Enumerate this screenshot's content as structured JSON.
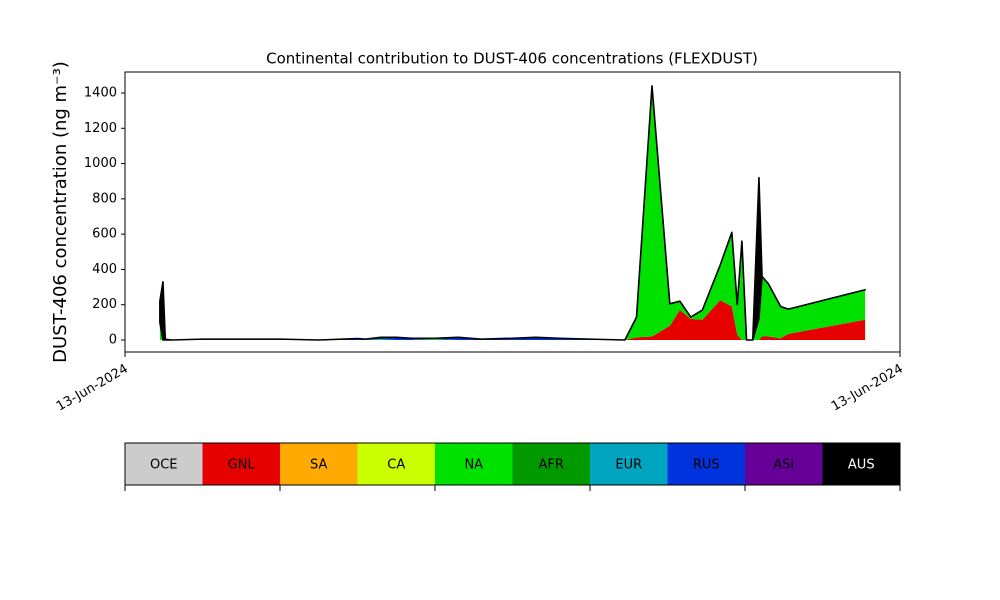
{
  "chart_data": {
    "type": "stacked_area",
    "title": "Continental contribution to DUST-406 concentrations (FLEXDUST)",
    "y_label": "DUST-406 concentration (ng m⁻³)",
    "x": [
      4.5,
      4.9,
      5.2,
      6,
      10,
      20,
      25,
      30,
      31,
      33,
      35,
      37,
      40,
      43,
      46,
      50,
      53,
      56,
      60,
      64.5,
      66,
      68,
      70.3,
      71.6,
      73,
      74.5,
      76.8,
      78.3,
      79,
      79.6,
      80.2,
      81,
      81.8,
      82.2,
      83,
      84.6,
      85.6,
      95.5
    ],
    "xlim": [
      0,
      100
    ],
    "xticks": [
      {
        "value": 0,
        "label": "13-Jun-2024"
      },
      {
        "value": 100,
        "label": "13-Jun-2024"
      }
    ],
    "ylim": [
      -68,
      1519
    ],
    "yticks": [
      0,
      200,
      400,
      600,
      800,
      1000,
      1200,
      1400
    ],
    "series": [
      {
        "name": "OCE",
        "color": "#cccccc",
        "values": [
          0,
          0,
          0,
          0,
          0,
          0,
          0,
          0,
          0,
          0,
          0,
          0,
          0,
          0,
          0,
          0,
          0,
          0,
          0,
          0,
          0,
          0,
          0,
          0,
          0,
          0,
          0,
          0,
          0,
          0,
          0,
          0,
          0,
          0,
          0,
          0,
          0,
          0
        ]
      },
      {
        "name": "GNL",
        "color": "#e60000",
        "values": [
          0,
          0,
          0,
          0,
          0,
          0,
          0,
          0,
          0,
          0,
          0,
          0,
          0,
          0,
          0,
          0,
          0,
          0,
          0,
          0,
          15,
          20,
          80,
          170,
          120,
          115,
          225,
          190,
          30,
          0,
          0,
          0,
          0,
          20,
          20,
          10,
          35,
          115
        ]
      },
      {
        "name": "SA",
        "color": "#ffaa00",
        "values": [
          0,
          0,
          0,
          0,
          0,
          0,
          0,
          0,
          0,
          0,
          0,
          0,
          0,
          0,
          0,
          0,
          0,
          0,
          0,
          0,
          0,
          0,
          0,
          0,
          0,
          0,
          0,
          0,
          0,
          0,
          0,
          0,
          0,
          0,
          0,
          0,
          0,
          0
        ]
      },
      {
        "name": "CA",
        "color": "#ccff00",
        "values": [
          0,
          0,
          0,
          0,
          0,
          0,
          0,
          0,
          0,
          0,
          0,
          0,
          0,
          0,
          0,
          0,
          0,
          0,
          0,
          0,
          0,
          0,
          0,
          0,
          0,
          0,
          0,
          0,
          0,
          0,
          0,
          0,
          0,
          0,
          0,
          0,
          0,
          0
        ]
      },
      {
        "name": "NA",
        "color": "#00e100",
        "values": [
          100,
          0,
          0,
          0,
          0,
          0,
          0,
          0,
          0,
          5,
          0,
          0,
          5,
          0,
          0,
          0,
          0,
          0,
          0,
          0,
          115,
          1420,
          125,
          50,
          10,
          55,
          200,
          420,
          170,
          560,
          0,
          0,
          120,
          340,
          300,
          180,
          140,
          170
        ]
      },
      {
        "name": "AFR",
        "color": "#009a00",
        "values": [
          0,
          0,
          0,
          0,
          0,
          0,
          0,
          0,
          0,
          0,
          0,
          0,
          0,
          0,
          0,
          0,
          0,
          0,
          0,
          0,
          0,
          0,
          0,
          0,
          0,
          0,
          0,
          0,
          0,
          0,
          0,
          0,
          0,
          0,
          0,
          0,
          0,
          0
        ]
      },
      {
        "name": "EUR",
        "color": "#00a5bf",
        "values": [
          0,
          0,
          0,
          0,
          0,
          0,
          0,
          0,
          0,
          0,
          0,
          0,
          0,
          0,
          0,
          0,
          0,
          0,
          0,
          0,
          0,
          0,
          0,
          0,
          0,
          0,
          0,
          0,
          0,
          0,
          0,
          0,
          0,
          0,
          0,
          0,
          0,
          0
        ]
      },
      {
        "name": "RUS",
        "color": "#0033dd",
        "values": [
          0,
          0,
          0,
          0,
          5,
          5,
          0,
          8,
          5,
          10,
          15,
          10,
          5,
          15,
          5,
          10,
          15,
          10,
          5,
          0,
          0,
          0,
          0,
          0,
          0,
          0,
          0,
          0,
          0,
          0,
          0,
          0,
          0,
          0,
          0,
          0,
          0,
          0
        ]
      },
      {
        "name": "ASI",
        "color": "#660099",
        "values": [
          0,
          0,
          0,
          0,
          0,
          0,
          0,
          0,
          0,
          0,
          0,
          0,
          0,
          0,
          0,
          0,
          0,
          0,
          0,
          0,
          0,
          0,
          0,
          0,
          0,
          0,
          0,
          0,
          0,
          0,
          0,
          0,
          0,
          0,
          0,
          0,
          0,
          0
        ]
      },
      {
        "name": "AUS",
        "color": "#000000",
        "values": [
          120,
          330,
          5,
          0,
          0,
          0,
          0,
          0,
          0,
          0,
          0,
          0,
          0,
          0,
          0,
          0,
          0,
          0,
          0,
          0,
          0,
          0,
          0,
          0,
          0,
          0,
          0,
          0,
          0,
          0,
          0,
          0,
          800,
          0,
          0,
          0,
          0,
          0
        ]
      }
    ]
  }
}
